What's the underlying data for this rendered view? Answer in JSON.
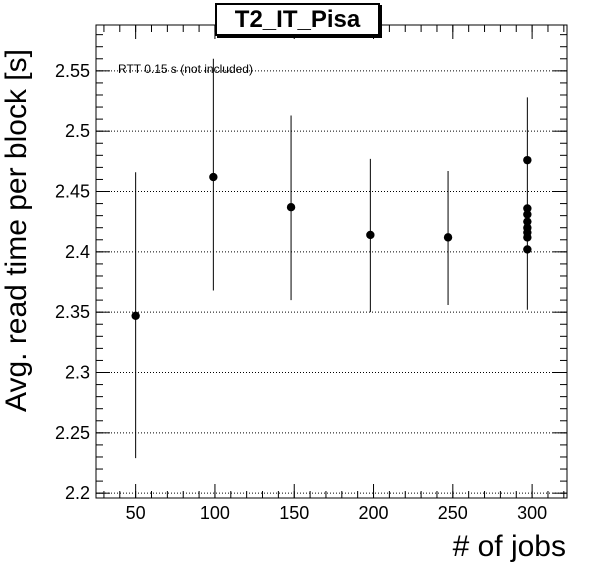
{
  "chart_data": {
    "type": "scatter",
    "title": "T2_IT_Pisa",
    "xlabel": "# of jobs",
    "ylabel": "Avg. read time per block [s]",
    "annotation": "RTT 0.15 s (not included)",
    "xlim": [
      25,
      322
    ],
    "ylim": [
      2.196,
      2.588
    ],
    "x_ticks": [
      50,
      100,
      150,
      200,
      250,
      300
    ],
    "y_ticks": [
      2.2,
      2.25,
      2.3,
      2.35,
      2.4,
      2.45,
      2.5,
      2.55
    ],
    "y_grid": true,
    "colors": {
      "marker": "#000000",
      "grid": "#000000"
    },
    "series": [
      {
        "points": [
          {
            "x": 50,
            "y": 2.347,
            "yerr_low": 2.229,
            "yerr_high": 2.466
          },
          {
            "x": 99,
            "y": 2.462,
            "yerr_low": 2.368,
            "yerr_high": 2.56
          },
          {
            "x": 148,
            "y": 2.437,
            "yerr_low": 2.36,
            "yerr_high": 2.513
          },
          {
            "x": 198,
            "y": 2.414,
            "yerr_low": 2.35,
            "yerr_high": 2.477
          },
          {
            "x": 247,
            "y": 2.412,
            "yerr_low": 2.356,
            "yerr_high": 2.467
          },
          {
            "x": 297,
            "y": 2.476,
            "yerr_low": 2.352,
            "yerr_high": 2.528
          },
          {
            "x": 297,
            "y": 2.436
          },
          {
            "x": 297,
            "y": 2.431
          },
          {
            "x": 297,
            "y": 2.425
          },
          {
            "x": 297,
            "y": 2.42
          },
          {
            "x": 297,
            "y": 2.416
          },
          {
            "x": 297,
            "y": 2.412
          },
          {
            "x": 297,
            "y": 2.402
          }
        ]
      }
    ]
  }
}
